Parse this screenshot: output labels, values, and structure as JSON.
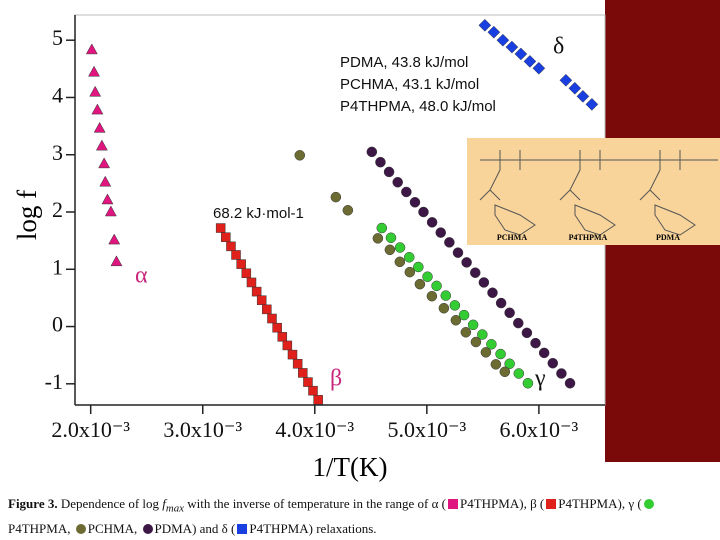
{
  "chart_data": {
    "type": "scatter",
    "xlabel": "1/T(K)",
    "ylabel": "log f",
    "xlim": [
      0.00186,
      0.00659
    ],
    "ylim": [
      -1.37,
      5.44
    ],
    "xticks": [
      {
        "value": 0.002,
        "label": "2.0x10⁻³"
      },
      {
        "value": 0.003,
        "label": "3.0x10⁻³"
      },
      {
        "value": 0.004,
        "label": "4.0x10⁻³"
      },
      {
        "value": 0.005,
        "label": "5.0x10⁻³"
      },
      {
        "value": 0.006,
        "label": "6.0x10⁻³"
      }
    ],
    "yticks": [
      5,
      4,
      3,
      2,
      1,
      0,
      -1
    ],
    "annotations": [
      "PDMA, 43.8 kJ/mol",
      "PCHMA, 43.1 kJ/mol",
      "P4THPMA, 48.0 kJ/mol",
      "68.2 kJ·mol-1",
      "α",
      "β",
      "γ",
      "δ"
    ],
    "structures": [
      "PCHMA",
      "P4THPMA",
      "PDMA"
    ],
    "caption": [
      "Figure 3.",
      " Dependence of log ",
      "f",
      "max",
      " with the inverse of temperature in the range of α (",
      "), β (",
      "), γ (",
      ", ",
      ", ",
      ") and δ (",
      ") relaxations."
    ],
    "series": [
      {
        "name": "P4THPMA",
        "color": "#e0157f",
        "marker": "triangle",
        "x": [
          0.00201,
          0.00203,
          0.00204,
          0.00206,
          0.00208,
          0.0021,
          0.00212,
          0.00213,
          0.00215,
          0.00218,
          0.00221,
          0.00223
        ],
        "values": [
          4.83,
          4.44,
          4.09,
          3.78,
          3.46,
          3.15,
          2.84,
          2.52,
          2.21,
          2.0,
          1.51,
          1.13
        ]
      },
      {
        "name": "P4THPMA",
        "color": "#e0201b",
        "marker": "square",
        "x": [
          0.00316,
          0.003206,
          0.003252,
          0.003297,
          0.003343,
          0.003389,
          0.003435,
          0.003481,
          0.003526,
          0.003572,
          0.003618,
          0.003664,
          0.00371,
          0.003755,
          0.003801,
          0.003847,
          0.003893,
          0.003939,
          0.003984,
          0.00403
        ],
        "values": [
          1.72,
          1.56,
          1.4,
          1.25,
          1.09,
          0.93,
          0.77,
          0.61,
          0.46,
          0.3,
          0.14,
          -0.02,
          -0.18,
          -0.33,
          -0.49,
          -0.65,
          -0.81,
          -0.97,
          -1.12,
          -1.28
        ]
      },
      {
        "name": "P4THPMA",
        "color": "#33cc33",
        "marker": "circle",
        "x": [
          0.004598,
          0.00468,
          0.004761,
          0.004843,
          0.004924,
          0.005006,
          0.005087,
          0.005169,
          0.00525,
          0.005332,
          0.005413,
          0.005495,
          0.005576,
          0.005658,
          0.005739,
          0.005821,
          0.005902
        ],
        "values": [
          1.72,
          1.55,
          1.38,
          1.21,
          1.04,
          0.87,
          0.71,
          0.54,
          0.37,
          0.2,
          0.03,
          -0.14,
          -0.31,
          -0.48,
          -0.65,
          -0.82,
          -0.99
        ]
      },
      {
        "name": "PCHMA",
        "color": "#6b6b32",
        "marker": "circle",
        "x": [
          0.003866,
          0.004188,
          0.004295,
          0.004563,
          0.00467,
          0.004759,
          0.004848,
          0.004938,
          0.005045,
          0.005152,
          0.005259,
          0.005348,
          0.005438,
          0.005527,
          0.005616,
          0.005696
        ],
        "values": [
          2.99,
          2.26,
          2.03,
          1.54,
          1.34,
          1.13,
          0.95,
          0.74,
          0.53,
          0.32,
          0.11,
          -0.1,
          -0.27,
          -0.45,
          -0.66,
          -0.79
        ]
      },
      {
        "name": "PDMA",
        "color": "#3d1846",
        "marker": "circle",
        "x": [
          0.004509,
          0.004586,
          0.004663,
          0.00474,
          0.004817,
          0.004894,
          0.00497,
          0.005047,
          0.005124,
          0.005201,
          0.005278,
          0.005355,
          0.005432,
          0.005509,
          0.005586,
          0.005663,
          0.005739,
          0.005816,
          0.005893,
          0.00597,
          0.006047,
          0.006124,
          0.006201,
          0.006278
        ],
        "values": [
          3.05,
          2.87,
          2.7,
          2.52,
          2.35,
          2.17,
          2.0,
          1.82,
          1.64,
          1.47,
          1.29,
          1.12,
          0.94,
          0.77,
          0.59,
          0.41,
          0.24,
          0.06,
          -0.11,
          -0.29,
          -0.46,
          -0.64,
          -0.82,
          -0.99
        ]
      },
      {
        "name": "P4THPMA",
        "color": "#1a3fe0",
        "marker": "diamond",
        "x": [
          0.005518,
          0.005598,
          0.005679,
          0.005759,
          0.005839,
          0.00592,
          0.006,
          0.006241,
          0.006321,
          0.006393,
          0.006473
        ],
        "values": [
          5.26,
          5.14,
          5.0,
          4.88,
          4.76,
          4.63,
          4.51,
          4.3,
          4.16,
          4.02,
          3.88
        ]
      }
    ]
  }
}
